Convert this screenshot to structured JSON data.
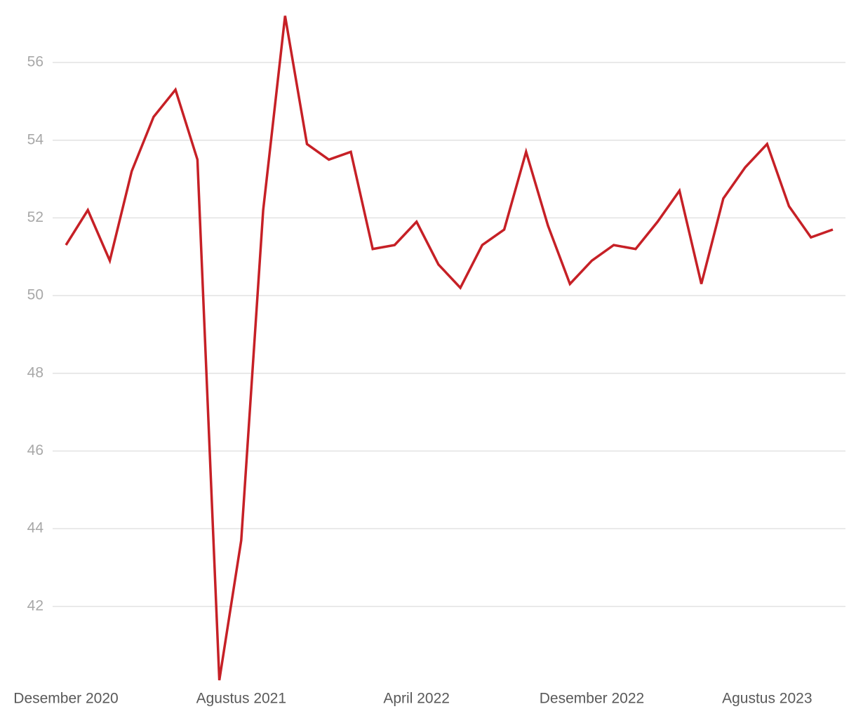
{
  "chart_data": {
    "type": "line",
    "categories": [
      "Desember 2020",
      null,
      null,
      null,
      null,
      null,
      null,
      null,
      "Agustus 2021",
      null,
      null,
      null,
      null,
      null,
      null,
      null,
      "April 2022",
      null,
      null,
      null,
      null,
      null,
      null,
      null,
      "Desember 2022",
      null,
      null,
      null,
      null,
      null,
      null,
      null,
      "Agustus 2023",
      null,
      null,
      null
    ],
    "series": [
      {
        "color": "#c62026",
        "values": [
          51.3,
          52.2,
          50.9,
          53.2,
          54.6,
          55.3,
          53.5,
          40.1,
          43.7,
          52.2,
          57.2,
          53.9,
          53.5,
          53.7,
          51.2,
          51.3,
          51.9,
          50.8,
          50.2,
          51.3,
          51.7,
          53.7,
          51.8,
          50.3,
          50.9,
          51.3,
          51.2,
          51.9,
          52.7,
          50.3,
          52.5,
          53.3,
          53.9,
          52.3,
          51.5,
          51.7
        ]
      }
    ],
    "ylim": [
      40.1,
      57.2
    ],
    "yticks": [
      42,
      44,
      46,
      48,
      50,
      52,
      54,
      56
    ],
    "grid": true
  }
}
